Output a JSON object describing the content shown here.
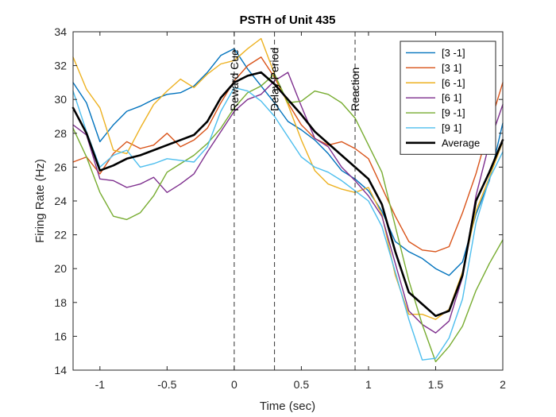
{
  "chart_data": {
    "type": "line",
    "title": "PSTH of Unit 435",
    "xlabel": "Time (sec)",
    "ylabel": "Firing Rate (Hz)",
    "xlim": [
      -1.2,
      2
    ],
    "ylim": [
      14,
      34
    ],
    "x_ticks": [
      -1,
      -0.5,
      0,
      0.5,
      1,
      1.5,
      2
    ],
    "x_tick_labels": [
      "-1",
      "-0.5",
      "0",
      "0.5",
      "1",
      "1.5",
      "2"
    ],
    "y_ticks": [
      14,
      16,
      18,
      20,
      22,
      24,
      26,
      28,
      30,
      32,
      34
    ],
    "y_tick_labels": [
      "14",
      "16",
      "18",
      "20",
      "22",
      "24",
      "26",
      "28",
      "30",
      "32",
      "34"
    ],
    "grid": false,
    "legend_position": "top-right",
    "x": [
      -1.2,
      -1.1,
      -1.0,
      -0.9,
      -0.8,
      -0.7,
      -0.6,
      -0.5,
      -0.4,
      -0.3,
      -0.2,
      -0.1,
      0.0,
      0.1,
      0.2,
      0.3,
      0.4,
      0.5,
      0.6,
      0.7,
      0.8,
      0.9,
      1.0,
      1.1,
      1.2,
      1.3,
      1.4,
      1.5,
      1.6,
      1.7,
      1.8,
      1.9,
      2.0
    ],
    "series": [
      {
        "name": "[3 -1]",
        "color": "#0072BD",
        "width": 1.4,
        "values": [
          31.0,
          29.8,
          27.5,
          28.5,
          29.3,
          29.6,
          30.0,
          30.3,
          30.4,
          30.8,
          31.6,
          32.6,
          33.0,
          31.8,
          30.8,
          29.8,
          28.7,
          28.2,
          27.6,
          26.8,
          25.8,
          25.3,
          24.6,
          23.4,
          21.6,
          21.0,
          20.6,
          20.0,
          19.6,
          20.4,
          23.2,
          25.2,
          28.6
        ]
      },
      {
        "name": "[3 1]",
        "color": "#D95319",
        "width": 1.4,
        "values": [
          26.3,
          26.6,
          25.6,
          26.8,
          27.5,
          27.1,
          27.3,
          28.0,
          27.2,
          27.6,
          28.3,
          29.8,
          31.1,
          32.0,
          32.5,
          31.3,
          29.8,
          28.5,
          27.7,
          27.3,
          27.5,
          27.1,
          26.5,
          24.8,
          23.1,
          21.6,
          21.1,
          21.0,
          21.3,
          23.3,
          25.6,
          28.4,
          31.0
        ]
      },
      {
        "name": "[6 -1]",
        "color": "#EDB120",
        "width": 1.4,
        "values": [
          32.5,
          30.6,
          29.5,
          27.0,
          26.8,
          28.3,
          29.7,
          30.5,
          31.2,
          30.7,
          31.5,
          32.1,
          32.3,
          33.0,
          33.6,
          31.5,
          29.7,
          27.6,
          25.8,
          25.0,
          24.7,
          24.5,
          24.8,
          23.2,
          19.6,
          17.3,
          17.3,
          17.0,
          17.6,
          19.8,
          23.4,
          25.4,
          27.5
        ]
      },
      {
        "name": "[6 1]",
        "color": "#7E2F8E",
        "width": 1.4,
        "values": [
          28.5,
          27.9,
          25.3,
          25.2,
          24.8,
          25.0,
          25.4,
          24.5,
          25.0,
          25.6,
          26.9,
          28.1,
          29.3,
          30.0,
          30.3,
          31.1,
          31.6,
          29.6,
          27.7,
          27.2,
          26.0,
          25.2,
          24.3,
          23.1,
          20.3,
          17.5,
          16.7,
          16.2,
          16.9,
          19.5,
          24.3,
          27.4,
          29.7
        ]
      },
      {
        "name": "[9 -1]",
        "color": "#77AC30",
        "width": 1.4,
        "values": [
          28.3,
          26.6,
          24.5,
          23.1,
          22.9,
          23.3,
          24.3,
          25.7,
          26.2,
          26.7,
          27.4,
          28.3,
          29.5,
          30.4,
          30.8,
          31.5,
          29.8,
          29.9,
          30.5,
          30.3,
          29.8,
          28.9,
          27.3,
          25.7,
          22.5,
          19.3,
          16.7,
          14.5,
          15.4,
          16.6,
          18.7,
          20.3,
          21.7
        ]
      },
      {
        "name": "[9 1]",
        "color": "#4DBEEE",
        "width": 1.4,
        "values": [
          30.5,
          28.1,
          26.0,
          26.7,
          27.0,
          26.0,
          26.2,
          26.5,
          26.4,
          26.3,
          27.2,
          29.3,
          30.7,
          30.5,
          29.9,
          29.0,
          27.8,
          26.6,
          26.0,
          25.7,
          25.2,
          24.6,
          24.0,
          22.5,
          19.8,
          17.0,
          14.6,
          14.7,
          15.9,
          18.2,
          22.7,
          25.3,
          26.9
        ]
      },
      {
        "name": "Average",
        "color": "#000000",
        "width": 2.6,
        "values": [
          29.5,
          28.0,
          25.8,
          26.1,
          26.5,
          26.7,
          27.0,
          27.3,
          27.6,
          27.9,
          28.7,
          30.1,
          31.0,
          31.4,
          31.6,
          30.9,
          30.0,
          29.1,
          28.1,
          27.4,
          26.7,
          26.0,
          25.3,
          23.8,
          21.0,
          18.6,
          17.9,
          17.2,
          17.5,
          19.6,
          24.0,
          25.7,
          27.6
        ]
      }
    ],
    "event_lines": [
      {
        "x": 0,
        "label": "Reward Cue"
      },
      {
        "x": 0.3,
        "label": "Delay Period"
      },
      {
        "x": 0.9,
        "label": "Reaction"
      }
    ]
  }
}
